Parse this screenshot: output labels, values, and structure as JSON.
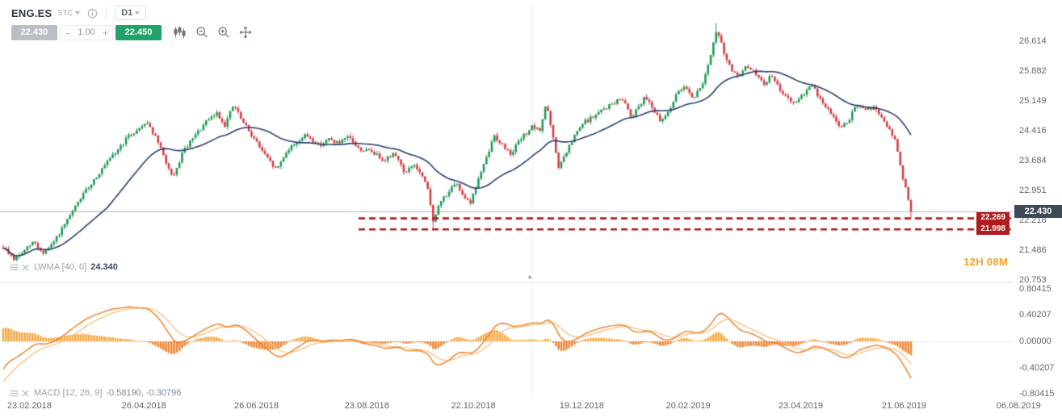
{
  "header": {
    "symbol": "ENG.ES",
    "market": "STC",
    "timeframe": "D1",
    "sell_label": "22.430",
    "buy_label": "22.450",
    "volume_value": "1.00",
    "minus_label": "-",
    "plus_label": "+"
  },
  "icons": {
    "collapse_arrow": "▲"
  },
  "indicator_rows": {
    "lwma": {
      "label": "LWMA [40, 0]",
      "value": "24.340"
    },
    "macd": {
      "label": "MACD [12, 26, 9]",
      "value": "-0.58190, -0.30796"
    }
  },
  "countdown": "12H 08M",
  "current_price": {
    "label": "22.430",
    "value": 22.43
  },
  "support_levels": [
    {
      "label": "22.269",
      "value": 22.269
    },
    {
      "label": "21.998",
      "value": 21.998
    }
  ],
  "axes": {
    "price_ticks": [
      {
        "label": "26.614",
        "value": 26.614
      },
      {
        "label": "25.882",
        "value": 25.882
      },
      {
        "label": "25.149",
        "value": 25.149
      },
      {
        "label": "24.416",
        "value": 24.416
      },
      {
        "label": "23.684",
        "value": 23.684
      },
      {
        "label": "22.951",
        "value": 22.951
      },
      {
        "label": "22.218",
        "value": 22.218
      },
      {
        "label": "21.486",
        "value": 21.486
      },
      {
        "label": "20.753",
        "value": 20.753
      }
    ],
    "macd_ticks": [
      {
        "label": "0.80415",
        "value": 0.80415
      },
      {
        "label": "0.40207",
        "value": 0.40207
      },
      {
        "label": "0.00000",
        "value": 0.0
      },
      {
        "label": "-0.40207",
        "value": -0.40207
      },
      {
        "label": "-0.80415",
        "value": -0.80415
      }
    ],
    "date_ticks": [
      {
        "label": "23.02.2018",
        "t": 0.029
      },
      {
        "label": "26.04.2018",
        "t": 0.142
      },
      {
        "label": "26.06.2018",
        "t": 0.253
      },
      {
        "label": "23.08.2018",
        "t": 0.362
      },
      {
        "label": "22.10.2018",
        "t": 0.467
      },
      {
        "label": "19.12.2018",
        "t": 0.574
      },
      {
        "label": "20.02.2019",
        "t": 0.679
      },
      {
        "label": "23.04.2019",
        "t": 0.79
      },
      {
        "label": "21.06.2019",
        "t": 0.892
      },
      {
        "label": "06.08.2019",
        "t": 1.005
      }
    ]
  },
  "colors": {
    "up": "#209b56",
    "down": "#d23f43",
    "ma": "#2b3f70",
    "macd_bar_pos": "#f7ab45",
    "macd_bar_neg": "#ef8a3a",
    "macd_line": "#ee7d23",
    "signal_line": "#f6c386",
    "level": "#b11b1f",
    "price_line": "#b5b5b5",
    "grid": "#f1f1f1",
    "zero_line": "#ededed",
    "badge_bg": "#3f4a57",
    "buy": "#20a269",
    "sell": "#b9bfc5",
    "countdown": "#f4a229"
  },
  "chart_data": {
    "type": "candlestick",
    "instrument": "ENG.ES",
    "timeframe": "D1",
    "x_axis_dates": [
      "23.02.2018",
      "06.08.2019"
    ],
    "visible_price_range": [
      20.69,
      27.5
    ],
    "macd_axis_range": [
      -0.80415,
      0.80415
    ],
    "candle_count": 341,
    "data_span": {
      "t_start": 0.0032,
      "t_end": 0.8988
    },
    "noise": 0.05,
    "seed": 9,
    "close_keyframes": [
      [
        0.0,
        21.55
      ],
      [
        0.012,
        21.25
      ],
      [
        0.023,
        21.45
      ],
      [
        0.034,
        21.7
      ],
      [
        0.043,
        21.4
      ],
      [
        0.052,
        21.55
      ],
      [
        0.068,
        22.1
      ],
      [
        0.085,
        22.75
      ],
      [
        0.103,
        23.3
      ],
      [
        0.121,
        23.8
      ],
      [
        0.137,
        24.25
      ],
      [
        0.149,
        24.45
      ],
      [
        0.158,
        24.65
      ],
      [
        0.17,
        24.15
      ],
      [
        0.181,
        23.55
      ],
      [
        0.187,
        23.2
      ],
      [
        0.197,
        23.85
      ],
      [
        0.21,
        24.25
      ],
      [
        0.223,
        24.6
      ],
      [
        0.235,
        24.85
      ],
      [
        0.244,
        24.55
      ],
      [
        0.254,
        25.05
      ],
      [
        0.263,
        24.65
      ],
      [
        0.277,
        24.2
      ],
      [
        0.29,
        23.75
      ],
      [
        0.301,
        23.45
      ],
      [
        0.312,
        23.9
      ],
      [
        0.324,
        24.15
      ],
      [
        0.334,
        24.3
      ],
      [
        0.348,
        24.05
      ],
      [
        0.359,
        24.2
      ],
      [
        0.37,
        24.1
      ],
      [
        0.381,
        24.25
      ],
      [
        0.392,
        23.95
      ],
      [
        0.406,
        23.9
      ],
      [
        0.419,
        23.7
      ],
      [
        0.432,
        23.85
      ],
      [
        0.443,
        23.35
      ],
      [
        0.452,
        23.6
      ],
      [
        0.461,
        23.3
      ],
      [
        0.468,
        22.95
      ],
      [
        0.474,
        22.15
      ],
      [
        0.481,
        22.65
      ],
      [
        0.49,
        22.9
      ],
      [
        0.499,
        23.1
      ],
      [
        0.508,
        22.8
      ],
      [
        0.515,
        22.65
      ],
      [
        0.523,
        23.2
      ],
      [
        0.532,
        23.7
      ],
      [
        0.541,
        24.3
      ],
      [
        0.55,
        24.05
      ],
      [
        0.559,
        23.85
      ],
      [
        0.57,
        24.2
      ],
      [
        0.582,
        24.5
      ],
      [
        0.591,
        24.4
      ],
      [
        0.598,
        25.1
      ],
      [
        0.605,
        24.3
      ],
      [
        0.612,
        23.5
      ],
      [
        0.621,
        23.9
      ],
      [
        0.63,
        24.3
      ],
      [
        0.639,
        24.6
      ],
      [
        0.65,
        24.75
      ],
      [
        0.662,
        24.95
      ],
      [
        0.673,
        25.1
      ],
      [
        0.683,
        25.2
      ],
      [
        0.692,
        24.75
      ],
      [
        0.699,
        25.0
      ],
      [
        0.708,
        25.25
      ],
      [
        0.715,
        25.0
      ],
      [
        0.724,
        24.6
      ],
      [
        0.733,
        24.9
      ],
      [
        0.742,
        25.3
      ],
      [
        0.751,
        25.55
      ],
      [
        0.76,
        25.2
      ],
      [
        0.769,
        25.5
      ],
      [
        0.778,
        26.1
      ],
      [
        0.786,
        26.9
      ],
      [
        0.793,
        26.4
      ],
      [
        0.801,
        25.95
      ],
      [
        0.81,
        25.7
      ],
      [
        0.819,
        26.0
      ],
      [
        0.828,
        25.85
      ],
      [
        0.837,
        25.55
      ],
      [
        0.846,
        25.75
      ],
      [
        0.855,
        25.45
      ],
      [
        0.864,
        25.2
      ],
      [
        0.873,
        25.05
      ],
      [
        0.881,
        25.3
      ],
      [
        0.89,
        25.55
      ],
      [
        0.897,
        25.3
      ],
      [
        0.905,
        25.0
      ],
      [
        0.914,
        24.8
      ],
      [
        0.923,
        24.45
      ],
      [
        0.932,
        24.7
      ],
      [
        0.941,
        25.05
      ],
      [
        0.95,
        24.9
      ],
      [
        0.959,
        25.0
      ],
      [
        0.968,
        24.7
      ],
      [
        0.977,
        24.4
      ],
      [
        0.984,
        24.1
      ],
      [
        0.99,
        23.3
      ],
      [
        0.994,
        23.0
      ],
      [
        0.998,
        22.6
      ],
      [
        1.0,
        22.43
      ]
    ],
    "wick_marks": [
      {
        "u": 0.474,
        "low": 21.99
      },
      {
        "u": 0.786,
        "high": 27.05
      },
      {
        "u": 1.0,
        "low": 22.27
      }
    ],
    "overlays": [
      {
        "name": "LWMA",
        "params": [
          40,
          0
        ],
        "last_value": 24.34
      },
      {
        "name": "MACD",
        "params": [
          12,
          26,
          9
        ],
        "last_values": [
          -0.5819,
          -0.30796
        ]
      }
    ],
    "levels": [
      22.269,
      21.998
    ],
    "current_price": 22.43
  }
}
